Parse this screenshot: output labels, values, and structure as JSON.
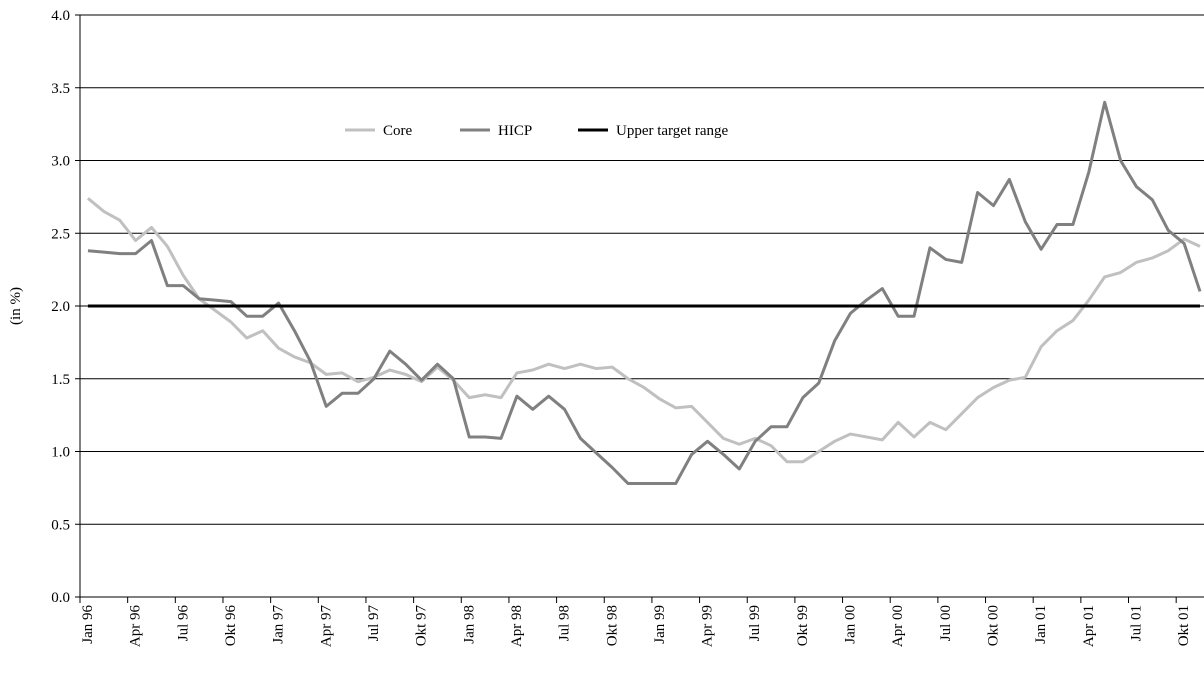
{
  "chart_data": {
    "type": "line",
    "ylabel": "(in %)",
    "categories": [
      "Jan 96",
      null,
      null,
      "Apr 96",
      null,
      null,
      "Jul 96",
      null,
      null,
      "Okt 96",
      null,
      null,
      "Jan 97",
      null,
      null,
      "Apr 97",
      null,
      null,
      "Jul 97",
      null,
      null,
      "Okt 97",
      null,
      null,
      "Jan 98",
      null,
      null,
      "Apr 98",
      null,
      null,
      "Jul 98",
      null,
      null,
      "Okt 98",
      null,
      null,
      "Jan 99",
      null,
      null,
      "Apr 99",
      null,
      null,
      "Jul 99",
      null,
      null,
      "Okt 99",
      null,
      null,
      "Jan 00",
      null,
      null,
      "Apr 00",
      null,
      null,
      "Jul 00",
      null,
      null,
      "Okt 00",
      null,
      null,
      "Jan 01",
      null,
      null,
      "Apr 01",
      null,
      null,
      "Jul 01",
      null,
      null,
      "Okt 01",
      null
    ],
    "series": [
      {
        "name": "Core",
        "color": "#c0c0c0",
        "values": [
          2.74,
          2.65,
          2.59,
          2.45,
          2.54,
          2.41,
          2.21,
          2.05,
          1.97,
          1.89,
          1.78,
          1.83,
          1.71,
          1.65,
          1.61,
          1.53,
          1.54,
          1.48,
          1.51,
          1.56,
          1.53,
          1.48,
          1.58,
          1.49,
          1.37,
          1.39,
          1.37,
          1.54,
          1.56,
          1.6,
          1.57,
          1.6,
          1.57,
          1.58,
          1.5,
          1.44,
          1.36,
          1.3,
          1.31,
          1.2,
          1.09,
          1.05,
          1.09,
          1.04,
          0.93,
          0.93,
          1.0,
          1.07,
          1.12,
          1.1,
          1.08,
          1.2,
          1.1,
          1.2,
          1.15,
          1.26,
          1.37,
          1.44,
          1.49,
          1.51,
          1.72,
          1.83,
          1.9,
          2.04,
          2.2,
          2.23,
          2.3,
          2.33,
          2.38,
          2.46,
          2.41
        ]
      },
      {
        "name": "HICP",
        "color": "#808080",
        "values": [
          2.38,
          2.37,
          2.36,
          2.36,
          2.45,
          2.14,
          2.14,
          2.05,
          2.04,
          2.03,
          1.93,
          1.93,
          2.02,
          1.83,
          1.62,
          1.31,
          1.4,
          1.4,
          1.5,
          1.69,
          1.6,
          1.49,
          1.6,
          1.5,
          1.1,
          1.1,
          1.09,
          1.38,
          1.29,
          1.38,
          1.29,
          1.09,
          0.99,
          0.89,
          0.78,
          0.78,
          0.78,
          0.78,
          0.98,
          1.07,
          0.98,
          0.88,
          1.07,
          1.17,
          1.17,
          1.37,
          1.47,
          1.76,
          1.95,
          2.04,
          2.12,
          1.93,
          1.93,
          2.4,
          2.32,
          2.3,
          2.78,
          2.69,
          2.87,
          2.58,
          2.39,
          2.56,
          2.56,
          2.92,
          3.4,
          3.0,
          2.82,
          2.73,
          2.52,
          2.43,
          2.1
        ]
      },
      {
        "name": "Upper target range",
        "color": "#000000",
        "values": [
          2,
          2,
          2,
          2,
          2,
          2,
          2,
          2,
          2,
          2,
          2,
          2,
          2,
          2,
          2,
          2,
          2,
          2,
          2,
          2,
          2,
          2,
          2,
          2,
          2,
          2,
          2,
          2,
          2,
          2,
          2,
          2,
          2,
          2,
          2,
          2,
          2,
          2,
          2,
          2,
          2,
          2,
          2,
          2,
          2,
          2,
          2,
          2,
          2,
          2,
          2,
          2,
          2,
          2,
          2,
          2,
          2,
          2,
          2,
          2,
          2,
          2,
          2,
          2,
          2,
          2,
          2,
          2,
          2,
          2,
          2
        ]
      }
    ],
    "ylim": [
      0,
      4
    ],
    "yticks": [
      {
        "value": 0,
        "label": "0.0"
      },
      0.5,
      {
        "value": 1,
        "label": "1.0"
      },
      1.5,
      {
        "value": 2,
        "label": "2.0"
      },
      2.5,
      {
        "value": 3,
        "label": "3.0"
      },
      3.5,
      {
        "value": 4,
        "label": "4.0"
      }
    ],
    "grid": true
  }
}
